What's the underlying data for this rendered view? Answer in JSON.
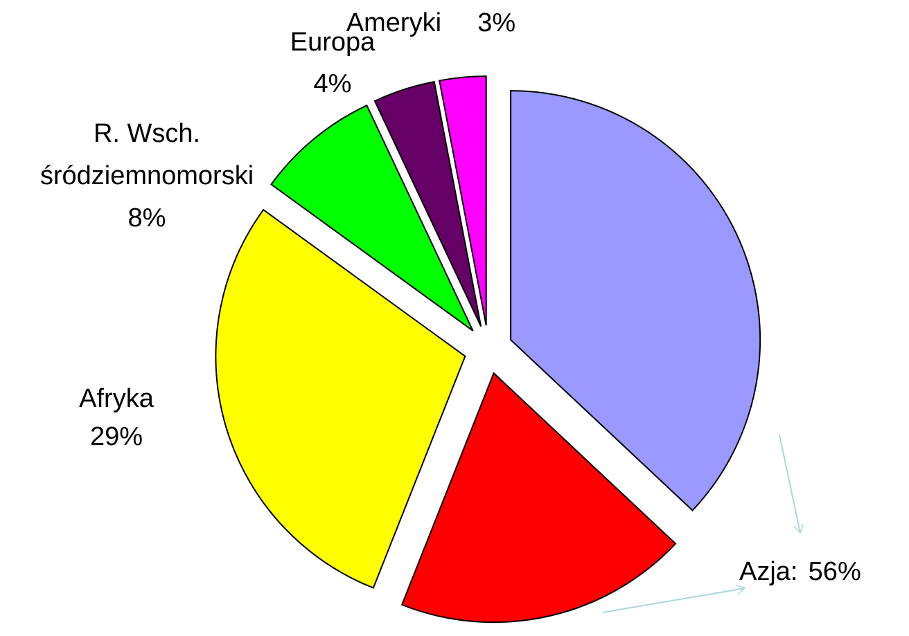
{
  "chart_data": {
    "type": "pie",
    "slices": [
      {
        "name": [
          "Azja:"
        ],
        "value": 56,
        "value_label": "56%",
        "parts": [
          37,
          19
        ],
        "colors": [
          "#9999ff",
          "#ff0000"
        ]
      },
      {
        "name": [
          "Afryka"
        ],
        "value": 29,
        "value_label": "29%",
        "parts": [
          29
        ],
        "colors": [
          "#ffff00"
        ]
      },
      {
        "name": [
          "R. Wsch.",
          "śródziemnomorski"
        ],
        "value": 8,
        "value_label": "8%",
        "parts": [
          8
        ],
        "colors": [
          "#00ff00"
        ]
      },
      {
        "name": [
          "Europa"
        ],
        "value": 4,
        "value_label": "4%",
        "parts": [
          4
        ],
        "colors": [
          "#660066"
        ]
      },
      {
        "name": [
          "Ameryki"
        ],
        "value": 3,
        "value_label": "3%",
        "parts": [
          3
        ],
        "colors": [
          "#ff00ff"
        ]
      }
    ]
  }
}
